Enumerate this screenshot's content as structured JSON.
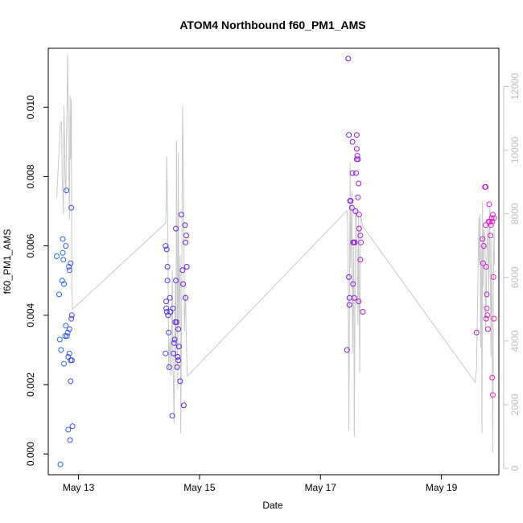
{
  "chart_data": {
    "type": "scatter",
    "title": "ATOM4 Northbound f60_PM1_AMS",
    "xlabel": "Date",
    "ylabel": "f60_PM1_AMS",
    "x_ticks": [
      {
        "value": 13.0,
        "label": "May 13"
      },
      {
        "value": 15.0,
        "label": "May 15"
      },
      {
        "value": 17.0,
        "label": "May 17"
      },
      {
        "value": 19.0,
        "label": "May 19"
      }
    ],
    "xlim": [
      12.5,
      19.95
    ],
    "ylim": [
      -0.0006,
      0.0117
    ],
    "y_ticks": [
      {
        "value": 0.0,
        "label": "0.000"
      },
      {
        "value": 0.002,
        "label": "0.002"
      },
      {
        "value": 0.004,
        "label": "0.004"
      },
      {
        "value": 0.006,
        "label": "0.006"
      },
      {
        "value": 0.008,
        "label": "0.008"
      },
      {
        "value": 0.01,
        "label": "0.010"
      }
    ],
    "y2lim": [
      -200,
      13200
    ],
    "y2_ticks": [
      {
        "value": 0,
        "label": "0"
      },
      {
        "value": 2000,
        "label": "2000"
      },
      {
        "value": 4000,
        "label": "4000"
      },
      {
        "value": 6000,
        "label": "6000"
      },
      {
        "value": 8000,
        "label": "8000"
      },
      {
        "value": 10000,
        "label": "10000"
      },
      {
        "value": 12000,
        "label": "12000"
      }
    ],
    "grid": false,
    "legend": "none",
    "colors": {
      "points_start": "#1e6ff0",
      "points_mid": "#6a17e6",
      "points_end": "#f020c8",
      "line": "#c8c8c8",
      "axis": "#000000",
      "secondary_axis": "#bdbdbd"
    },
    "series": [
      {
        "type": "scatter",
        "points": [
          [
            12.64,
            0.0057
          ],
          [
            12.68,
            0.0046
          ],
          [
            12.69,
            0.0033
          ],
          [
            12.7,
            -0.0003
          ],
          [
            12.71,
            0.003
          ],
          [
            12.73,
            0.005
          ],
          [
            12.74,
            0.0058
          ],
          [
            12.74,
            0.0062
          ],
          [
            12.75,
            0.0056
          ],
          [
            12.76,
            0.0049
          ],
          [
            12.76,
            0.0026
          ],
          [
            12.78,
            0.0034
          ],
          [
            12.79,
            0.006
          ],
          [
            12.79,
            0.0037
          ],
          [
            12.8,
            0.0076
          ],
          [
            12.81,
            0.0034
          ],
          [
            12.82,
            0.0035
          ],
          [
            12.83,
            0.0028
          ],
          [
            12.83,
            0.0007
          ],
          [
            12.84,
            0.0054
          ],
          [
            12.85,
            0.0029
          ],
          [
            12.85,
            0.0053
          ],
          [
            12.85,
            0.0036
          ],
          [
            12.86,
            0.0004
          ],
          [
            12.87,
            0.0027
          ],
          [
            12.87,
            0.0021
          ],
          [
            12.87,
            0.0055
          ],
          [
            12.88,
            0.0071
          ],
          [
            12.88,
            0.0039
          ],
          [
            12.89,
            0.004
          ],
          [
            12.89,
            0.0027
          ],
          [
            12.9,
            0.0008
          ],
          [
            14.44,
            0.0029
          ],
          [
            14.44,
            0.006
          ],
          [
            14.45,
            0.0044
          ],
          [
            14.45,
            0.0042
          ],
          [
            14.46,
            0.0041
          ],
          [
            14.46,
            0.0059
          ],
          [
            14.47,
            0.005
          ],
          [
            14.47,
            0.0054
          ],
          [
            14.48,
            0.004
          ],
          [
            14.49,
            0.0035
          ],
          [
            14.5,
            0.0025
          ],
          [
            14.51,
            0.0045
          ],
          [
            14.52,
            0.0041
          ],
          [
            14.55,
            0.0011
          ],
          [
            14.56,
            0.0042
          ],
          [
            14.57,
            0.0029
          ],
          [
            14.58,
            0.0032
          ],
          [
            14.59,
            0.0033
          ],
          [
            14.6,
            0.0038
          ],
          [
            14.61,
            0.005
          ],
          [
            14.61,
            0.0065
          ],
          [
            14.62,
            0.0038
          ],
          [
            14.63,
            0.0025
          ],
          [
            14.64,
            0.0028
          ],
          [
            14.65,
            0.0027
          ],
          [
            14.65,
            0.0036
          ],
          [
            14.66,
            0.0031
          ],
          [
            14.68,
            0.0021
          ],
          [
            14.7,
            0.0069
          ],
          [
            14.72,
            0.0053
          ],
          [
            14.73,
            0.0049
          ],
          [
            14.74,
            0.0014
          ],
          [
            14.76,
            0.0066
          ],
          [
            14.77,
            0.0061
          ],
          [
            14.77,
            0.0045
          ],
          [
            14.78,
            0.0063
          ],
          [
            14.79,
            0.0054
          ],
          [
            17.44,
            0.003
          ],
          [
            17.46,
            0.0114
          ],
          [
            17.47,
            0.0092
          ],
          [
            17.47,
            0.0051
          ],
          [
            17.48,
            0.0045
          ],
          [
            17.48,
            0.0043
          ],
          [
            17.49,
            0.0073
          ],
          [
            17.5,
            0.0073
          ],
          [
            17.52,
            0.0071
          ],
          [
            17.53,
            0.009
          ],
          [
            17.53,
            0.0081
          ],
          [
            17.54,
            0.0049
          ],
          [
            17.54,
            0.0061
          ],
          [
            17.55,
            0.0061
          ],
          [
            17.56,
            0.0045
          ],
          [
            17.57,
            0.0061
          ],
          [
            17.58,
            0.007
          ],
          [
            17.59,
            0.0081
          ],
          [
            17.6,
            0.0088
          ],
          [
            17.6,
            0.0085
          ],
          [
            17.6,
            0.0092
          ],
          [
            17.61,
            0.0086
          ],
          [
            17.62,
            0.0074
          ],
          [
            17.62,
            0.0085
          ],
          [
            17.63,
            0.0044
          ],
          [
            17.63,
            0.0078
          ],
          [
            17.64,
            0.0065
          ],
          [
            17.64,
            0.0069
          ],
          [
            17.66,
            0.0063
          ],
          [
            17.66,
            0.0056
          ],
          [
            17.67,
            0.0061
          ],
          [
            17.7,
            0.0041
          ],
          [
            19.58,
            0.0035
          ],
          [
            19.68,
            0.0062
          ],
          [
            19.69,
            0.0055
          ],
          [
            19.7,
            0.006
          ],
          [
            19.72,
            0.0077
          ],
          [
            19.73,
            0.0066
          ],
          [
            19.73,
            0.0077
          ],
          [
            19.74,
            0.0054
          ],
          [
            19.74,
            0.0039
          ],
          [
            19.75,
            0.0046
          ],
          [
            19.75,
            0.0042
          ],
          [
            19.76,
            0.004
          ],
          [
            19.77,
            0.0036
          ],
          [
            19.78,
            0.0067
          ],
          [
            19.79,
            0.0072
          ],
          [
            19.8,
            0.0067
          ],
          [
            19.81,
            0.0063
          ],
          [
            19.82,
            0.0066
          ],
          [
            19.83,
            0.0068
          ],
          [
            19.84,
            0.0022
          ],
          [
            19.84,
            0.0067
          ],
          [
            19.85,
            0.0069
          ],
          [
            19.85,
            0.0017
          ],
          [
            19.86,
            0.0051
          ],
          [
            19.87,
            0.0068
          ],
          [
            19.87,
            0.0039
          ]
        ]
      },
      {
        "type": "line",
        "axis": "right",
        "points": [
          [
            12.64,
            8500
          ],
          [
            12.66,
            9300
          ],
          [
            12.68,
            10000
          ],
          [
            12.7,
            10800
          ],
          [
            12.72,
            10900
          ],
          [
            12.73,
            9200
          ],
          [
            12.75,
            8000
          ],
          [
            12.76,
            11400
          ],
          [
            12.78,
            9000
          ],
          [
            12.79,
            8600
          ],
          [
            12.8,
            10200
          ],
          [
            12.82,
            13000
          ],
          [
            12.83,
            11200
          ],
          [
            12.84,
            9300
          ],
          [
            12.85,
            7800
          ],
          [
            12.86,
            11700
          ],
          [
            12.87,
            9700
          ],
          [
            12.88,
            11600
          ],
          [
            12.89,
            5700
          ],
          [
            12.9,
            5000
          ],
          [
            14.44,
            7700
          ],
          [
            14.45,
            8300
          ],
          [
            14.46,
            9800
          ],
          [
            14.48,
            7000
          ],
          [
            14.49,
            3100
          ],
          [
            14.51,
            4100
          ],
          [
            14.53,
            2900
          ],
          [
            14.55,
            6200
          ],
          [
            14.56,
            3800
          ],
          [
            14.58,
            1400
          ],
          [
            14.6,
            5800
          ],
          [
            14.61,
            3100
          ],
          [
            14.62,
            10300
          ],
          [
            14.63,
            6400
          ],
          [
            14.64,
            2500
          ],
          [
            14.65,
            9900
          ],
          [
            14.66,
            4500
          ],
          [
            14.68,
            6700
          ],
          [
            14.69,
            1100
          ],
          [
            14.7,
            3500
          ],
          [
            14.72,
            11400
          ],
          [
            14.74,
            8200
          ],
          [
            14.75,
            4300
          ],
          [
            14.77,
            5500
          ],
          [
            14.78,
            4300
          ],
          [
            14.79,
            3500
          ],
          [
            14.8,
            2900
          ],
          [
            17.44,
            8100
          ],
          [
            17.45,
            7600
          ],
          [
            17.46,
            5500
          ],
          [
            17.47,
            1200
          ],
          [
            17.48,
            4800
          ],
          [
            17.49,
            9600
          ],
          [
            17.5,
            6300
          ],
          [
            17.52,
            8700
          ],
          [
            17.53,
            3600
          ],
          [
            17.55,
            7000
          ],
          [
            17.56,
            1000
          ],
          [
            17.58,
            8200
          ],
          [
            17.6,
            7600
          ],
          [
            17.62,
            4500
          ],
          [
            17.63,
            8000
          ],
          [
            17.65,
            3000
          ],
          [
            17.66,
            7400
          ],
          [
            17.67,
            7900
          ],
          [
            17.7,
            7600
          ],
          [
            19.56,
            2700
          ],
          [
            19.58,
            3100
          ],
          [
            19.6,
            5500
          ],
          [
            19.62,
            7900
          ],
          [
            19.63,
            6400
          ],
          [
            19.64,
            8000
          ],
          [
            19.65,
            3800
          ],
          [
            19.66,
            6900
          ],
          [
            19.67,
            1100
          ],
          [
            19.68,
            8400
          ],
          [
            19.69,
            5700
          ],
          [
            19.7,
            7500
          ],
          [
            19.72,
            7300
          ],
          [
            19.73,
            4300
          ],
          [
            19.75,
            6700
          ],
          [
            19.77,
            7600
          ],
          [
            19.78,
            5400
          ],
          [
            19.8,
            8200
          ],
          [
            19.82,
            3500
          ],
          [
            19.83,
            7200
          ],
          [
            19.85,
            500
          ],
          [
            19.86,
            5800
          ],
          [
            19.87,
            7500
          ],
          [
            19.88,
            6400
          ]
        ]
      }
    ]
  }
}
